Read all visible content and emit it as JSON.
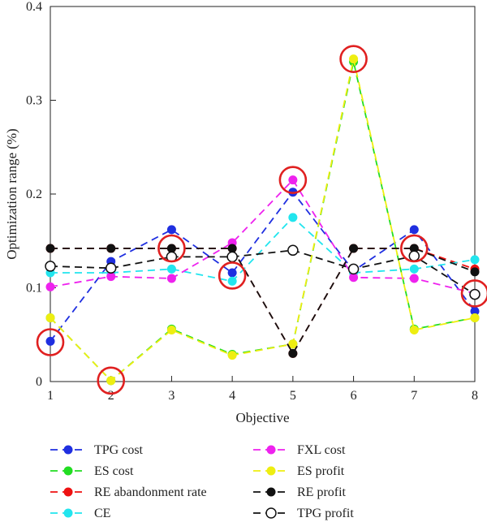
{
  "chart_data": {
    "type": "line",
    "xlabel": "Objective",
    "ylabel": "Optimization range (%)",
    "x": [
      1,
      2,
      3,
      4,
      5,
      6,
      7,
      8
    ],
    "xlim": [
      1,
      8
    ],
    "ylim": [
      0,
      0.4
    ],
    "xticks": [
      "1",
      "2",
      "3",
      "4",
      "5",
      "6",
      "7",
      "8"
    ],
    "yticks": [
      {
        "value": 0,
        "label": "0"
      },
      {
        "value": 0.1,
        "label": "0.1"
      },
      {
        "value": 0.2,
        "label": "0.2"
      },
      {
        "value": 0.3,
        "label": "0.3"
      },
      {
        "value": 0.4,
        "label": "0.4"
      }
    ],
    "grid": false,
    "legend_position": "bottom",
    "series": [
      {
        "name": "TPG cost",
        "color": "#1f2fe0",
        "dash": true,
        "marker": "filled",
        "values": [
          0.043,
          0.128,
          0.162,
          0.116,
          0.202,
          0.118,
          0.162,
          0.075
        ]
      },
      {
        "name": "ES cost",
        "color": "#22dd22",
        "dash": true,
        "marker": "filled",
        "values": [
          0.068,
          0.001,
          0.056,
          0.029,
          0.04,
          0.341,
          0.056,
          0.068
        ]
      },
      {
        "name": "RE abandonment rate",
        "color": "#ee1111",
        "dash": true,
        "marker": "filled",
        "values": [
          0.142,
          0.142,
          0.142,
          0.142,
          0.03,
          0.142,
          0.142,
          0.12
        ]
      },
      {
        "name": "CE",
        "color": "#22e5ee",
        "dash": true,
        "marker": "filled",
        "values": [
          0.116,
          0.116,
          0.12,
          0.107,
          0.175,
          0.116,
          0.12,
          0.13
        ]
      },
      {
        "name": "FXL cost",
        "color": "#ee22ee",
        "dash": true,
        "marker": "filled",
        "values": [
          0.101,
          0.112,
          0.11,
          0.148,
          0.215,
          0.111,
          0.11,
          0.094
        ]
      },
      {
        "name": "ES profit",
        "color": "#eeee11",
        "dash": true,
        "marker": "filled",
        "values": [
          0.068,
          0.001,
          0.055,
          0.028,
          0.04,
          0.344,
          0.055,
          0.068
        ]
      },
      {
        "name": "RE profit",
        "color": "#111111",
        "dash": true,
        "marker": "filled",
        "values": [
          0.142,
          0.142,
          0.142,
          0.142,
          0.03,
          0.142,
          0.142,
          0.117
        ]
      },
      {
        "name": "TPG profit",
        "color": "#111111",
        "dash": true,
        "marker": "open",
        "values": [
          0.123,
          0.121,
          0.133,
          0.133,
          0.14,
          0.12,
          0.134,
          0.093
        ]
      }
    ],
    "highlights": [
      {
        "x": 1,
        "y": 0.042
      },
      {
        "x": 2,
        "y": 0.001
      },
      {
        "x": 3,
        "y": 0.142
      },
      {
        "x": 4,
        "y": 0.113
      },
      {
        "x": 5,
        "y": 0.215
      },
      {
        "x": 6,
        "y": 0.344
      },
      {
        "x": 7,
        "y": 0.142
      },
      {
        "x": 8,
        "y": 0.094
      }
    ],
    "highlight_color": "#e02020"
  }
}
